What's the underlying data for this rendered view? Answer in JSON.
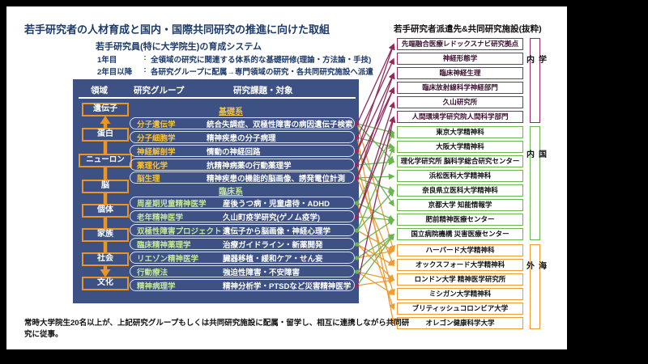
{
  "page": {
    "title": "若手研究者の人材育成と国内・国際共同研究の推進に向けた取組",
    "right_title": "若手研究者派遣先&共同研究施設(抜粋)",
    "subtitle": "若手研究員(特に大学院生)の育成システム",
    "year_lines": [
      {
        "term": "1年目",
        "colon": ":",
        "desc": "全領域の研究に関連する体系的な基礎研修(理論・方法論・手技)"
      },
      {
        "term": "2年目以降",
        "colon": ":",
        "desc": "各研究グループに配属→専門領域の研究・各共同研究施設へ派遣"
      }
    ],
    "footnote": "常時大学院生20名以上が、上記研究グループもしくは共同研究施設に配属・留学し、相互に連携しながら共同研究に従事。"
  },
  "table": {
    "headers": [
      "領域",
      "研究グループ",
      "研究課題・対象"
    ],
    "domains": [
      "遺伝子",
      "蛋白",
      "ニューロン",
      "脳",
      "個体",
      "家族",
      "社会",
      "文化"
    ],
    "sections": [
      {
        "name": "基礎系",
        "label_color": "#f6c33c",
        "rows": [
          {
            "label": "分子遺伝学",
            "desc": "統合失調症、双極性障害の病因遺伝子検索"
          },
          {
            "label": "分子細胞学",
            "desc": "精神疾患の分子病理"
          },
          {
            "label": "神経解剖学",
            "desc": "情動の神経回路"
          },
          {
            "label": "薬理化学",
            "desc": "抗精神病薬の行動薬理学"
          },
          {
            "label": "脳生理",
            "desc": "精神疾患の機能的脳画像、誘発電位計測"
          }
        ]
      },
      {
        "name": "臨床系",
        "label_color": "#c6e79a",
        "rows": [
          {
            "label": "周産期児童精神医学",
            "desc": "産後うつ病・児童虐待・ADHD"
          },
          {
            "label": "老年精神医学",
            "desc": "久山町疫学研究(ゲノム疫学)"
          },
          {
            "label": "双極性障害プロジェクト",
            "desc": "遺伝子から脳画像・神経心理学"
          },
          {
            "label": "臨床精神薬理学",
            "desc": "治療ガイドライン・新薬開発"
          },
          {
            "label": "リエゾン精神医学",
            "desc": "臓器移植・緩和ケア・せん妄"
          },
          {
            "label": "行動療法",
            "desc": "強迫性障害・不安障害"
          },
          {
            "label": "精神病理学",
            "desc": "精神分析学・PTSDなど災害精神医学"
          }
        ]
      }
    ]
  },
  "institutions": {
    "groups": [
      {
        "name": "学内",
        "color": "#93295d",
        "items": [
          "先端融合医療レドックスナビ研究拠点",
          "神経形態学",
          "臨床神経生理",
          "臨床放射線科学神経部門",
          "久山研究所",
          "人間環境学研究院人間科学部門"
        ]
      },
      {
        "name": "国内",
        "color": "#6bb450",
        "items": [
          "東京大学精神科",
          "大阪大学精神科",
          "理化学研究所 脳科学総合研究センター",
          "浜松医科大学精神科",
          "奈良県立医科大学精神科",
          "京都大学 知能情報学",
          "肥前精神医療センター",
          "国立病院機構 災害医療センター"
        ]
      },
      {
        "name": "海外",
        "color": "#ee9c33",
        "items": [
          "ハーバード大学精神科",
          "オックスフォード大学精神科",
          "ロンドン大学 精神医学研究所",
          "ミシガン大学精神科",
          "ブリティッシュコロンビア大学",
          "オレゴン健康科学大学"
        ]
      }
    ]
  },
  "edges": [
    [
      0,
      0
    ],
    [
      0,
      6
    ],
    [
      0,
      8
    ],
    [
      0,
      14
    ],
    [
      1,
      1
    ],
    [
      1,
      7
    ],
    [
      1,
      19
    ],
    [
      2,
      0
    ],
    [
      2,
      2
    ],
    [
      2,
      11
    ],
    [
      3,
      3
    ],
    [
      3,
      8
    ],
    [
      3,
      17
    ],
    [
      4,
      2
    ],
    [
      4,
      3
    ],
    [
      4,
      9
    ],
    [
      4,
      10
    ],
    [
      4,
      15
    ],
    [
      5,
      6
    ],
    [
      5,
      12
    ],
    [
      5,
      18
    ],
    [
      6,
      4
    ],
    [
      6,
      5
    ],
    [
      6,
      12
    ],
    [
      7,
      7
    ],
    [
      7,
      10
    ],
    [
      7,
      14
    ],
    [
      8,
      12
    ],
    [
      8,
      15
    ],
    [
      8,
      16
    ],
    [
      9,
      13
    ],
    [
      9,
      14
    ],
    [
      10,
      13
    ],
    [
      10,
      16
    ],
    [
      10,
      17
    ],
    [
      11,
      5
    ],
    [
      11,
      13
    ],
    [
      11,
      16
    ]
  ],
  "colors": {
    "panel_navy": "#3d5185",
    "accent_orange": "#ed9522",
    "gold_text": "#f6c33c",
    "light_green_text": "#c6e79a",
    "group_in_university": "#93295d",
    "group_domestic": "#6bb450",
    "group_overseas": "#ee9c33",
    "title_navy": "#1c3a6b"
  }
}
